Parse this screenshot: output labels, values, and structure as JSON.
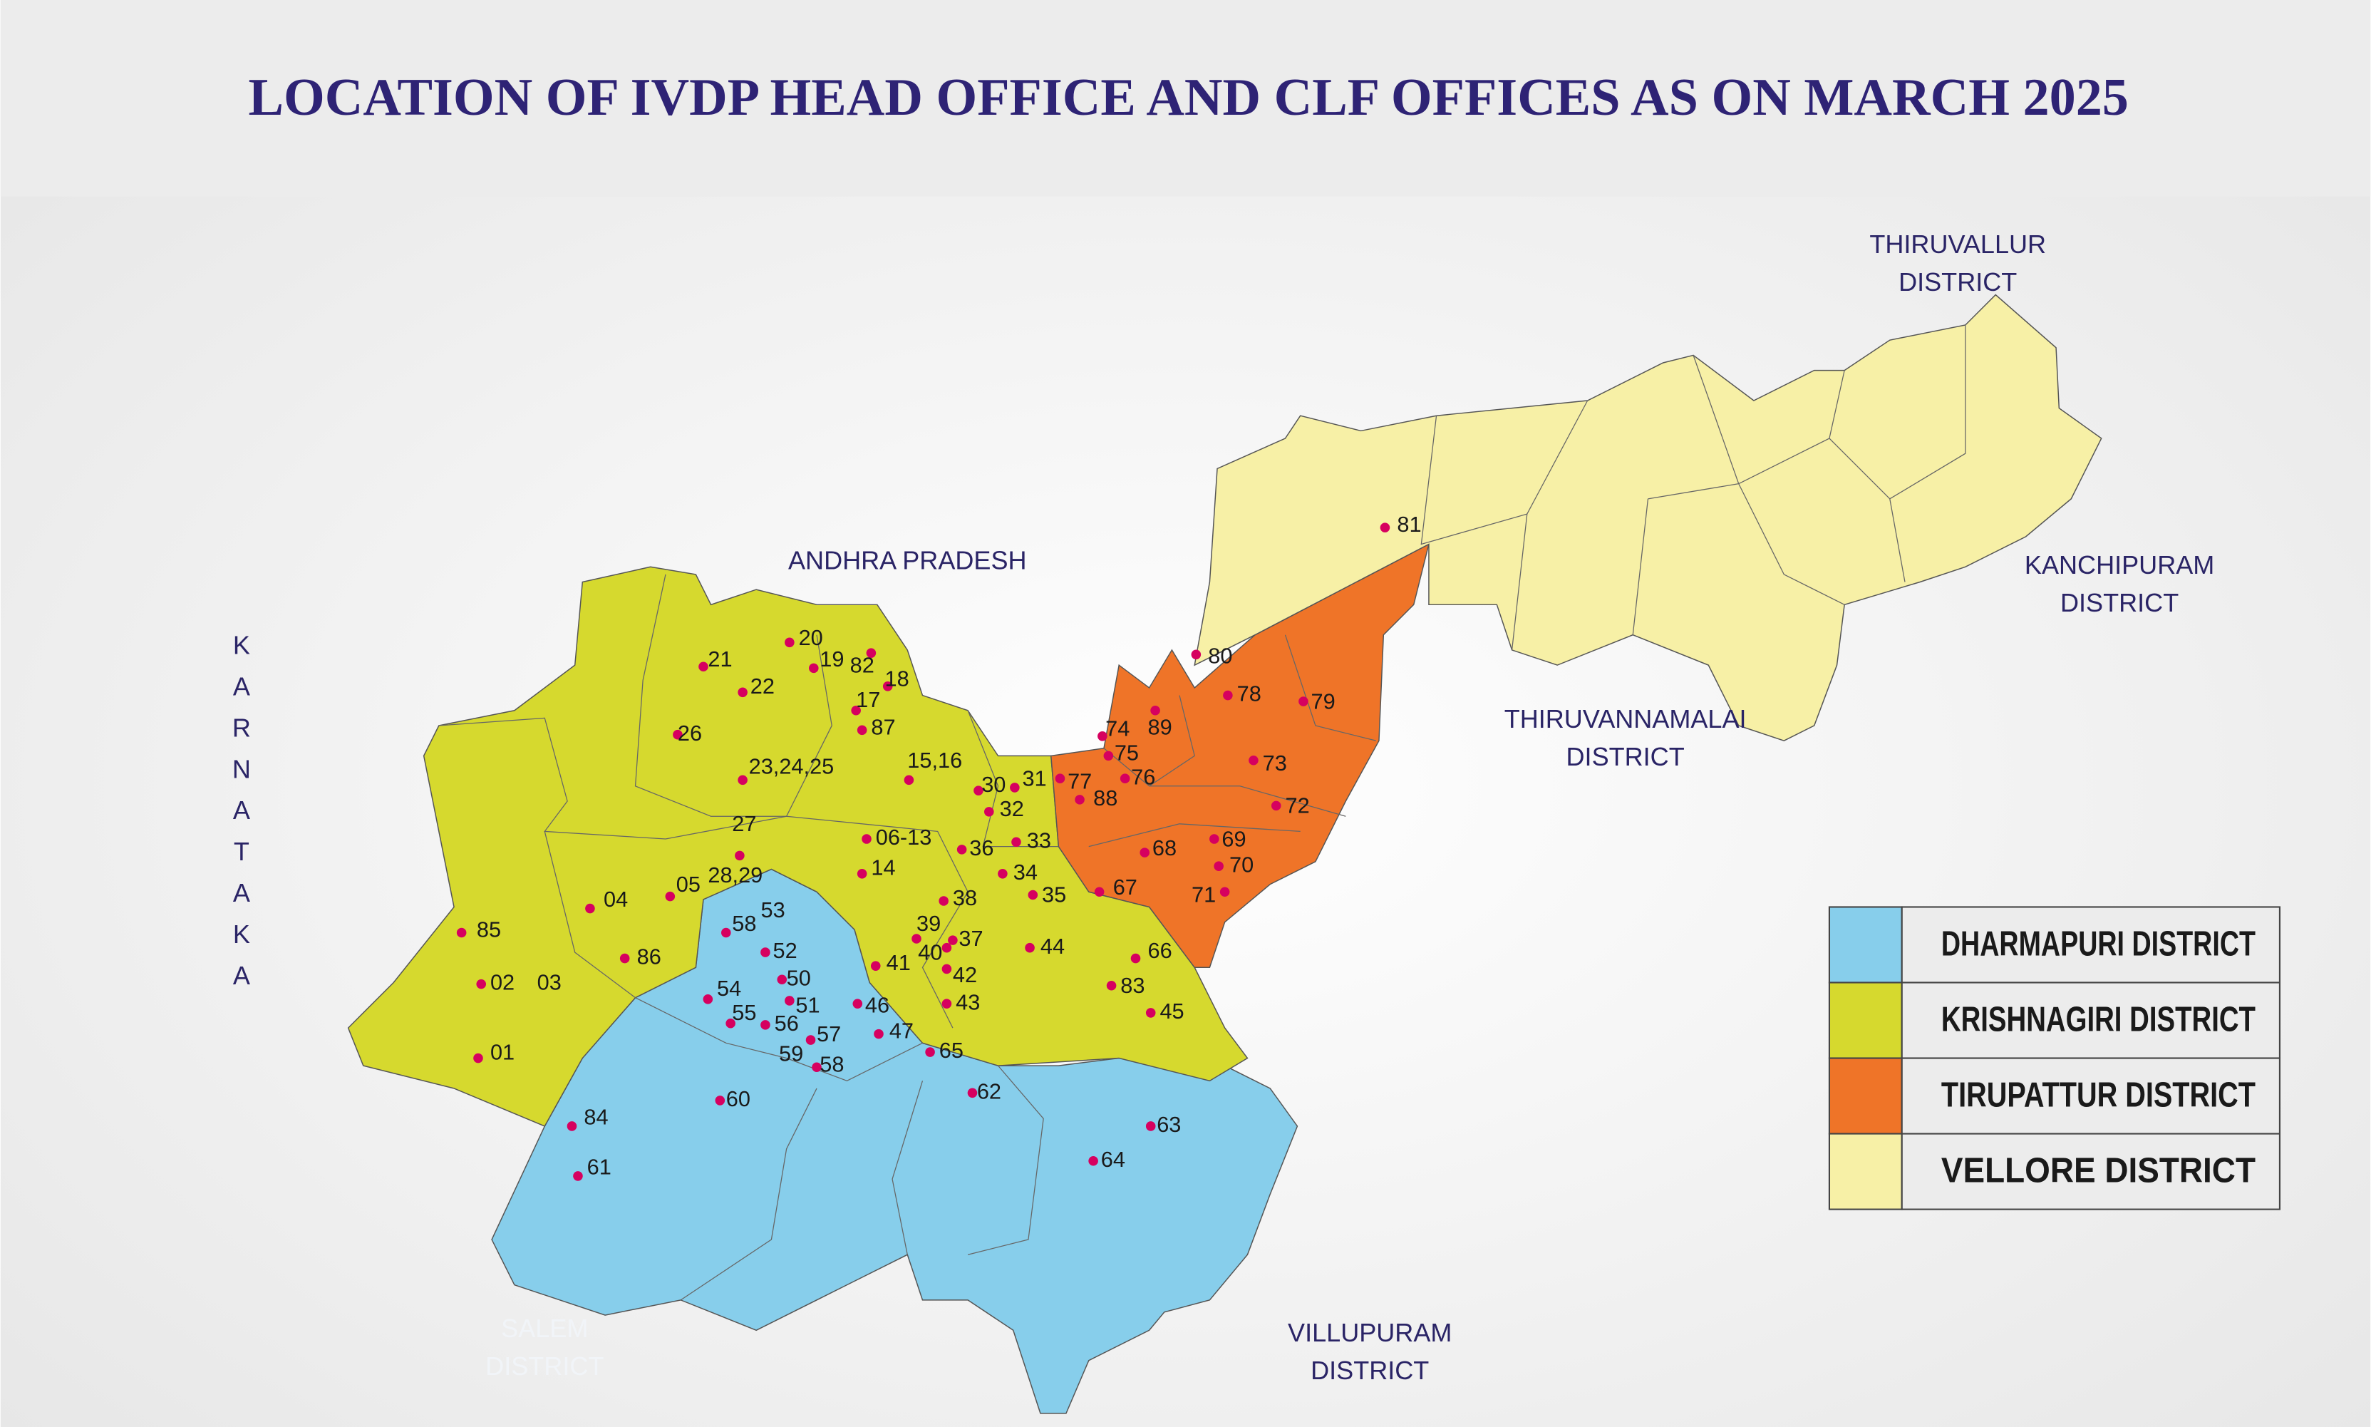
{
  "title": "LOCATION OF IVDP HEAD OFFICE AND CLF OFFICES AS ON MARCH 2025",
  "neighbors": [
    {
      "lines": [
        "ANDHRA PRADESH"
      ]
    },
    {
      "lines": [
        "THIRUVALLUR",
        "DISTRICT"
      ]
    },
    {
      "lines": [
        "KANCHIPURAM",
        "DISTRICT"
      ]
    },
    {
      "lines": [
        "THIRUVANNAMALAI",
        "DISTRICT"
      ]
    },
    {
      "lines": [
        "VILLUPURAM",
        "DISTRICT"
      ]
    },
    {
      "lines": [
        "SALEM",
        "DISTRICT"
      ]
    }
  ],
  "karnataka": "KARNATAKA",
  "legend": [
    {
      "label": "DHARMAPURI DISTRICT",
      "color": "#87ceeb"
    },
    {
      "label": "KRISHNAGIRI DISTRICT",
      "color": "#d6d92e"
    },
    {
      "label": "TIRUPATTUR DISTRICT",
      "color": "#ef7428"
    },
    {
      "label": "VELLORE DISTRICT",
      "color": "#f7f0a6"
    }
  ],
  "marker_color": "#d6005f",
  "offices": [
    "81",
    "80",
    "78",
    "79",
    "89",
    "74",
    "75",
    "76",
    "77",
    "88",
    "73",
    "72",
    "69",
    "70",
    "71",
    "68",
    "67",
    "20",
    "19",
    "82",
    "18",
    "17",
    "87",
    "21",
    "22",
    "26",
    "23,24,25",
    "15,16",
    "30",
    "31",
    "32",
    "33",
    "36",
    "34",
    "35",
    "06-13",
    "14",
    "27",
    "28,29",
    "05",
    "04",
    "85",
    "02",
    "03",
    "86",
    "01",
    "58",
    "53",
    "52",
    "50",
    "54",
    "51",
    "55",
    "56",
    "57",
    "59",
    "58",
    "46",
    "47",
    "41",
    "39",
    "40",
    "37",
    "42",
    "43",
    "38",
    "44",
    "66",
    "83",
    "45",
    "65",
    "62",
    "60",
    "84",
    "61",
    "63",
    "64"
  ]
}
